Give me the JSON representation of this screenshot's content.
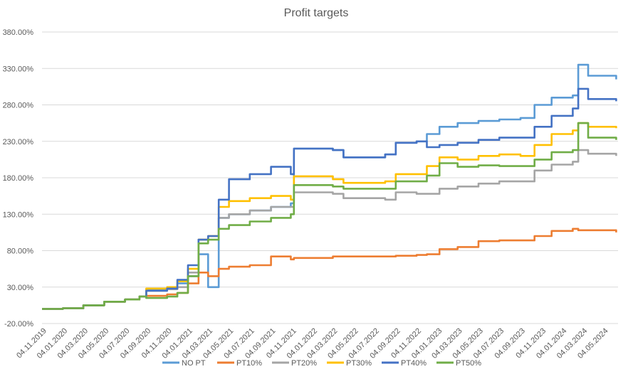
{
  "chart_data": {
    "type": "line",
    "title": "Profit targets",
    "xlabel": "",
    "ylabel": "",
    "ylim": [
      -20,
      380
    ],
    "y_ticks": [
      "-20.00%",
      "30.00%",
      "80.00%",
      "130.00%",
      "180.00%",
      "230.00%",
      "280.00%",
      "330.00%",
      "380.00%"
    ],
    "x_ticks": [
      "04.11.2019",
      "04.01.2020",
      "04.03.2020",
      "04.05.2020",
      "04.07.2020",
      "04.09.2020",
      "04.11.2020",
      "04.01.2021",
      "04.03.2021",
      "04.05.2021",
      "04.07.2021",
      "04.09.2021",
      "04.11.2021",
      "04.01.2022",
      "04.03.2022",
      "04.05.2022",
      "04.07.2022",
      "04.09.2022",
      "04.11.2022",
      "04.01.2023",
      "04.03.2023",
      "04.05.2023",
      "04.07.2023",
      "04.09.2023",
      "04.11.2023",
      "04.01.2024",
      "04.03.2024",
      "04.05.2024"
    ],
    "grid": true,
    "legend_position": "bottom",
    "x": [
      "2019-11-04",
      "2020-01-04",
      "2020-03-04",
      "2020-05-04",
      "2020-07-04",
      "2020-08-15",
      "2020-09-04",
      "2020-11-04",
      "2020-12-04",
      "2021-01-04",
      "2021-02-04",
      "2021-03-04",
      "2021-04-04",
      "2021-05-04",
      "2021-07-04",
      "2021-09-04",
      "2021-11-01",
      "2021-11-10",
      "2022-03-04",
      "2022-04-04",
      "2022-08-04",
      "2022-09-04",
      "2022-11-04",
      "2022-12-04",
      "2023-01-10",
      "2023-03-04",
      "2023-05-04",
      "2023-07-04",
      "2023-09-04",
      "2023-10-15",
      "2023-12-04",
      "2024-02-04",
      "2024-02-20",
      "2024-03-20",
      "2024-06-10"
    ],
    "series": [
      {
        "name": "NO PT",
        "color": "#5B9BD5",
        "values": [
          0,
          1,
          5,
          10,
          13,
          17,
          27,
          28,
          35,
          45,
          75,
          30,
          125,
          130,
          135,
          140,
          145,
          220,
          218,
          208,
          212,
          228,
          230,
          240,
          250,
          255,
          258,
          260,
          262,
          280,
          290,
          293,
          335,
          320,
          315
        ]
      },
      {
        "name": "PT10%",
        "color": "#ED7D31",
        "values": [
          0,
          1,
          5,
          10,
          13,
          17,
          18,
          20,
          22,
          35,
          50,
          45,
          55,
          58,
          60,
          72,
          68,
          70,
          72,
          72,
          72,
          73,
          74,
          75,
          82,
          85,
          93,
          94,
          94,
          100,
          107,
          110,
          108,
          108,
          105
        ]
      },
      {
        "name": "PT20%",
        "color": "#A5A5A5",
        "values": [
          0,
          1,
          5,
          10,
          13,
          17,
          25,
          27,
          30,
          50,
          95,
          100,
          125,
          130,
          135,
          140,
          140,
          160,
          158,
          152,
          150,
          160,
          158,
          158,
          165,
          168,
          172,
          175,
          175,
          190,
          198,
          202,
          218,
          213,
          210
        ]
      },
      {
        "name": "PT30%",
        "color": "#FFC000",
        "values": [
          0,
          1,
          5,
          10,
          13,
          17,
          28,
          30,
          38,
          55,
          95,
          100,
          140,
          148,
          152,
          155,
          150,
          182,
          178,
          173,
          175,
          185,
          185,
          196,
          208,
          205,
          210,
          212,
          210,
          225,
          240,
          245,
          255,
          250,
          248
        ]
      },
      {
        "name": "PT40%",
        "color": "#4472C4",
        "values": [
          0,
          1,
          5,
          10,
          13,
          17,
          25,
          28,
          40,
          60,
          95,
          100,
          150,
          178,
          185,
          195,
          185,
          220,
          218,
          208,
          212,
          228,
          230,
          222,
          225,
          228,
          232,
          235,
          235,
          250,
          265,
          275,
          302,
          288,
          285
        ]
      },
      {
        "name": "PT50%",
        "color": "#70AD47",
        "values": [
          0,
          1,
          5,
          10,
          13,
          17,
          15,
          17,
          22,
          45,
          90,
          95,
          110,
          115,
          120,
          125,
          130,
          170,
          168,
          165,
          165,
          175,
          175,
          183,
          200,
          195,
          197,
          196,
          196,
          205,
          215,
          218,
          255,
          235,
          232
        ]
      }
    ]
  }
}
